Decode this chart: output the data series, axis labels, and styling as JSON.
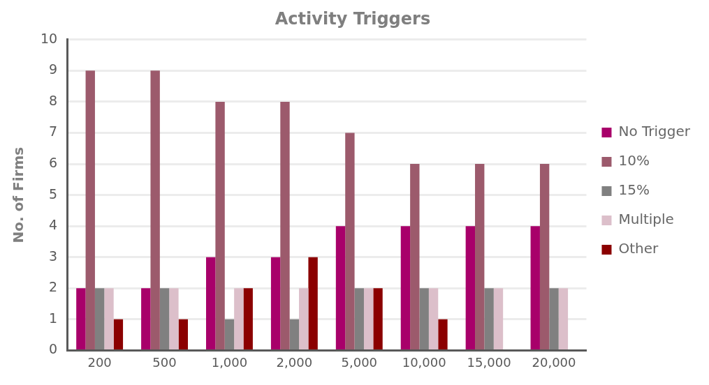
{
  "chart_data": {
    "type": "bar",
    "title": "Activity Triggers",
    "ylabel": "No. of Firms",
    "categories": [
      "200",
      "500",
      "1,000",
      "2,000",
      "5,000",
      "10,000",
      "15,000",
      "20,000"
    ],
    "series": [
      {
        "name": "No Trigger",
        "color": "#a8006a",
        "values": [
          2,
          2,
          3,
          3,
          4,
          4,
          4,
          4
        ]
      },
      {
        "name": "10%",
        "color": "#9c5a6c",
        "values": [
          9,
          9,
          8,
          8,
          7,
          6,
          6,
          6
        ]
      },
      {
        "name": "15%",
        "color": "#808080",
        "values": [
          2,
          2,
          1,
          1,
          2,
          2,
          2,
          2
        ]
      },
      {
        "name": "Multiple",
        "color": "#dcbfca",
        "values": [
          2,
          2,
          2,
          2,
          2,
          2,
          2,
          2
        ]
      },
      {
        "name": "Other",
        "color": "#8b0000",
        "values": [
          1,
          1,
          2,
          3,
          2,
          1,
          0,
          0
        ]
      }
    ],
    "ylim": [
      0,
      10
    ],
    "yticks": [
      0,
      1,
      2,
      3,
      4,
      5,
      6,
      7,
      8,
      9,
      10
    ],
    "grid": "y",
    "legend": "right"
  }
}
